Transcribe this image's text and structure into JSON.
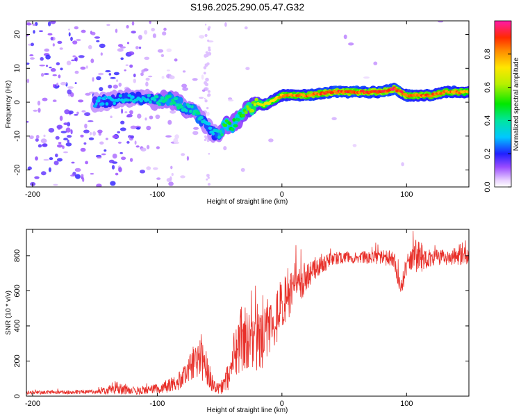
{
  "chart_data": [
    {
      "type": "heatmap",
      "title": "S196.2025.290.05.47.G32",
      "xlabel": "Height of straight line (km)",
      "ylabel": "Frequency (Hz)",
      "xlim": [
        -205,
        150
      ],
      "ylim": [
        -25,
        24
      ],
      "xticks": [
        -200,
        -100,
        0,
        100
      ],
      "yticks": [
        -20,
        -10,
        0,
        10,
        20
      ],
      "colorbar": {
        "label": "Normalized spectral amplitude",
        "range": [
          0,
          1
        ],
        "ticks": [
          0.0,
          0.2,
          0.4,
          0.6,
          0.8
        ],
        "tick_labels": [
          "0.0",
          "0.2",
          "0.4",
          "0.6",
          "0.8"
        ]
      },
      "ridge": {
        "x": [
          -150,
          -130,
          -110,
          -100,
          -90,
          -85,
          -80,
          -75,
          -70,
          -65,
          -60,
          -55,
          -50,
          -45,
          -40,
          -35,
          -30,
          -25,
          -20,
          -15,
          -10,
          -5,
          0,
          10,
          20,
          40,
          60,
          70,
          80,
          90,
          95,
          100,
          110,
          120,
          130,
          140,
          150
        ],
        "y": [
          0,
          1,
          1,
          0.5,
          1,
          0,
          -1,
          -2,
          -3,
          -5,
          -7,
          -9,
          -10,
          -6,
          -7,
          -5,
          -3,
          -2,
          0,
          -1,
          0,
          1,
          2,
          2,
          2,
          3,
          3,
          3,
          3,
          4,
          3,
          2,
          2,
          2,
          3,
          3,
          3
        ],
        "amplitude": [
          0.3,
          0.35,
          0.35,
          0.4,
          0.45,
          0.45,
          0.4,
          0.4,
          0.45,
          0.4,
          0.35,
          0.35,
          0.4,
          0.55,
          0.5,
          0.5,
          0.6,
          0.65,
          0.7,
          0.75,
          0.75,
          0.8,
          0.85,
          0.9,
          0.9,
          0.95,
          0.95,
          0.95,
          0.95,
          0.98,
          0.95,
          0.92,
          0.9,
          0.92,
          0.9,
          0.88,
          0.85
        ]
      }
    },
    {
      "type": "line",
      "xlabel": "Height of straight line (km)",
      "ylabel": "SNR (10 * v/v)",
      "xlim": [
        -205,
        150
      ],
      "ylim": [
        0,
        950
      ],
      "xticks": [
        -200,
        -100,
        0,
        100
      ],
      "yticks": [
        0,
        200,
        400,
        600,
        800
      ],
      "series": [
        {
          "name": "SNR",
          "color": "#e8302a",
          "envelope_x": [
            -205,
            -150,
            -140,
            -135,
            -120,
            -100,
            -90,
            -80,
            -75,
            -70,
            -65,
            -60,
            -55,
            -50,
            -45,
            -40,
            -35,
            -30,
            -25,
            -20,
            -15,
            -10,
            -5,
            0,
            10,
            20,
            30,
            40,
            50,
            60,
            80,
            90,
            95,
            100,
            105,
            110,
            115,
            120,
            130,
            140,
            150
          ],
          "envelope_y": [
            20,
            25,
            30,
            50,
            30,
            40,
            60,
            100,
            150,
            200,
            220,
            150,
            60,
            40,
            80,
            200,
            300,
            350,
            280,
            300,
            320,
            400,
            450,
            520,
            600,
            680,
            740,
            780,
            790,
            790,
            790,
            780,
            600,
            740,
            790,
            800,
            780,
            790,
            790,
            795,
            800
          ],
          "noise_amplitude": [
            10,
            12,
            20,
            40,
            20,
            30,
            40,
            60,
            80,
            100,
            120,
            100,
            40,
            30,
            60,
            140,
            180,
            200,
            160,
            160,
            160,
            180,
            170,
            150,
            120,
            80,
            50,
            40,
            35,
            35,
            40,
            50,
            60,
            60,
            80,
            100,
            60,
            50,
            45,
            50,
            50
          ]
        }
      ]
    }
  ]
}
